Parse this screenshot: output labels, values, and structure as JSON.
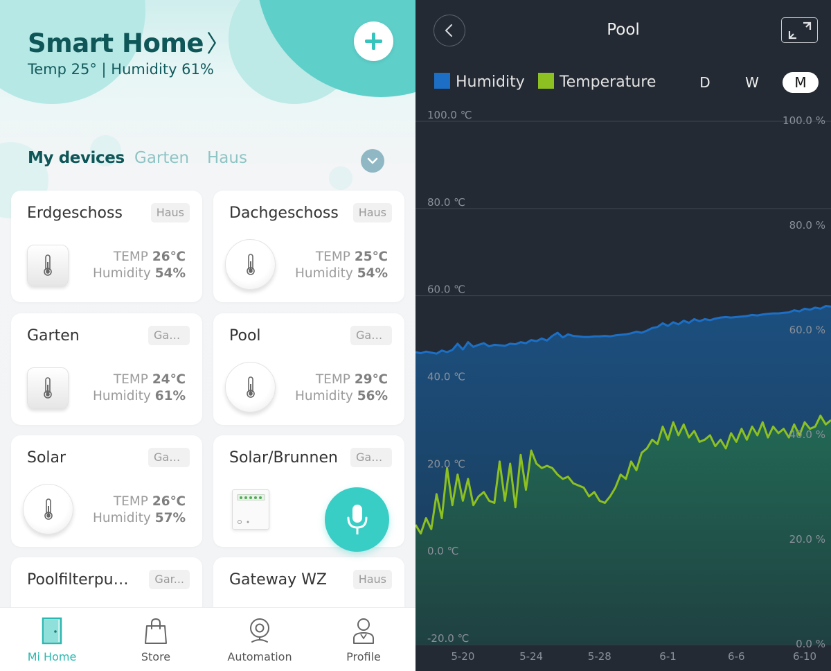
{
  "home": {
    "title": "Smart Home",
    "chevron": "〉",
    "subtitle": "Temp 25° | Humidity 61%",
    "add_icon": "plus-icon"
  },
  "tabs": [
    {
      "label": "My devices",
      "active": true
    },
    {
      "label": "Garten",
      "active": false
    },
    {
      "label": "Haus",
      "active": false
    }
  ],
  "devices": [
    {
      "name": "Erdgeschoss",
      "room": "Haus",
      "icon": "square-sensor",
      "temp_label": "TEMP",
      "temp": "26℃",
      "hum_label": "Humidity",
      "hum": "54%"
    },
    {
      "name": "Dachgeschoss",
      "room": "Haus",
      "icon": "round-sensor",
      "temp_label": "TEMP",
      "temp": "25℃",
      "hum_label": "Humidity",
      "hum": "54%"
    },
    {
      "name": "Garten",
      "room": "Garten",
      "icon": "square-sensor",
      "temp_label": "TEMP",
      "temp": "24℃",
      "hum_label": "Humidity",
      "hum": "61%"
    },
    {
      "name": "Pool",
      "room": "Garten",
      "icon": "round-sensor",
      "temp_label": "TEMP",
      "temp": "29℃",
      "hum_label": "Humidity",
      "hum": "56%"
    },
    {
      "name": "Solar",
      "room": "Garten",
      "icon": "round-sensor",
      "temp_label": "TEMP",
      "temp": "26℃",
      "hum_label": "Humidity",
      "hum": "57%"
    },
    {
      "name": "Solar/Brunnen",
      "room": "Garten",
      "icon": "switch-module"
    },
    {
      "name": "Poolfilterpum...",
      "room": "Gar..."
    },
    {
      "name": "Gateway WZ",
      "room": "Haus"
    }
  ],
  "bottom_nav": [
    {
      "label": "Mi Home",
      "icon": "door-icon",
      "active": true
    },
    {
      "label": "Store",
      "icon": "shopping-bag-icon",
      "active": false
    },
    {
      "label": "Automation",
      "icon": "camera-icon",
      "active": false
    },
    {
      "label": "Profile",
      "icon": "person-icon",
      "active": false
    }
  ],
  "detail": {
    "title": "Pool",
    "periods": [
      {
        "label": "D",
        "selected": false
      },
      {
        "label": "W",
        "selected": false
      },
      {
        "label": "M",
        "selected": true
      }
    ]
  },
  "colors": {
    "accent": "#38cdc5",
    "humidity": "#1c6fc4",
    "temperature": "#8dc021"
  },
  "chart_data": {
    "type": "line",
    "series": [
      {
        "name": "Humidity",
        "axis": "right",
        "x": [
          0,
          1,
          2,
          3,
          4,
          5,
          6,
          7,
          8,
          9,
          10,
          11,
          12,
          13,
          14,
          15,
          16,
          17,
          18,
          19,
          20,
          21,
          22,
          23,
          24,
          25,
          26,
          27,
          28,
          29,
          30,
          31,
          32,
          33,
          34,
          35,
          36,
          37,
          38,
          39,
          40,
          41,
          42,
          43,
          44,
          45,
          46,
          47,
          48,
          49,
          50,
          51,
          52,
          53,
          54,
          55,
          56,
          57,
          58,
          59,
          60,
          61,
          62,
          63,
          64,
          65,
          66,
          67,
          68,
          69,
          70,
          71,
          72,
          73,
          74,
          75,
          76,
          77,
          78,
          79
        ],
        "values": [
          55.9,
          55.7,
          56.0,
          55.8,
          55.6,
          56.2,
          55.9,
          56.3,
          57.5,
          56.4,
          57.8,
          56.9,
          57.3,
          57.6,
          57.0,
          57.3,
          57.2,
          57.1,
          57.5,
          57.4,
          57.8,
          57.6,
          58.2,
          58.0,
          58.5,
          58.1,
          59.0,
          59.6,
          58.7,
          59.3,
          59.0,
          58.9,
          58.8,
          58.8,
          58.9,
          58.9,
          59.0,
          58.9,
          59.1,
          59.2,
          59.3,
          59.5,
          59.8,
          59.6,
          60.0,
          60.5,
          60.7,
          61.4,
          60.9,
          61.6,
          61.2,
          61.9,
          61.5,
          62.2,
          61.8,
          62.2,
          62.0,
          62.3,
          62.5,
          62.6,
          62.5,
          62.6,
          62.7,
          62.8,
          63.0,
          62.9,
          63.1,
          63.2,
          63.3,
          63.3,
          63.4,
          63.5,
          63.9,
          63.7,
          64.2,
          64.0,
          64.4,
          64.2,
          64.7,
          64.6
        ]
      },
      {
        "name": "Temperature",
        "axis": "left",
        "x": [
          0,
          1,
          2,
          3,
          4,
          5,
          6,
          7,
          8,
          9,
          10,
          11,
          12,
          13,
          14,
          15,
          16,
          17,
          18,
          19,
          20,
          21,
          22,
          23,
          24,
          25,
          26,
          27,
          28,
          29,
          30,
          31,
          32,
          33,
          34,
          35,
          36,
          37,
          38,
          39,
          40,
          41,
          42,
          43,
          44,
          45,
          46,
          47,
          48,
          49,
          50,
          51,
          52,
          53,
          54,
          55,
          56,
          57,
          58,
          59,
          60,
          61,
          62,
          63,
          64,
          65,
          66,
          67,
          68,
          69,
          70,
          71,
          72,
          73,
          74,
          75,
          76,
          77,
          78,
          79
        ],
        "values": [
          7.5,
          5.5,
          9.0,
          6.5,
          14.5,
          9.0,
          20.5,
          12.0,
          19.0,
          13.0,
          18.0,
          12.0,
          14.0,
          15.0,
          13.0,
          12.5,
          22.0,
          13.0,
          21.5,
          11.5,
          23.5,
          15.5,
          24.5,
          21.5,
          20.5,
          21.0,
          20.5,
          19.0,
          18.0,
          18.5,
          17.0,
          16.5,
          16.0,
          14.0,
          15.0,
          13.0,
          12.5,
          14.0,
          16.0,
          19.0,
          18.0,
          22.0,
          20.0,
          24.0,
          25.0,
          27.0,
          26.0,
          30.0,
          27.0,
          31.0,
          28.0,
          30.5,
          27.5,
          29.0,
          26.5,
          27.0,
          28.0,
          25.5,
          27.0,
          25.0,
          28.5,
          26.5,
          29.5,
          27.0,
          30.0,
          28.0,
          31.0,
          27.5,
          30.0,
          28.5,
          29.5,
          27.5,
          30.5,
          28.0,
          31.0,
          29.5,
          30.0,
          32.5,
          30.5,
          31.5
        ]
      }
    ],
    "x_tick_labels": [
      "5-20",
      "5-24",
      "5-28",
      "6-1",
      "6-6",
      "6-10"
    ],
    "x_tick_positions": [
      9,
      22,
      35,
      48,
      61,
      74
    ],
    "left_axis": {
      "unit": "℃",
      "ticks": [
        "100.0 ℃",
        "80.0 ℃",
        "60.0 ℃",
        "40.0 ℃",
        "20.0 ℃",
        "0.0 ℃",
        "-20.0 ℃"
      ],
      "ylim": [
        -20,
        100
      ]
    },
    "right_axis": {
      "unit": "%",
      "ticks": [
        "100.0 %",
        "80.0 %",
        "60.0 %",
        "40.0 %",
        "20.0 %",
        "0.0 %"
      ],
      "ylim": [
        0,
        100
      ]
    },
    "grid": true,
    "legend": "top-left"
  }
}
